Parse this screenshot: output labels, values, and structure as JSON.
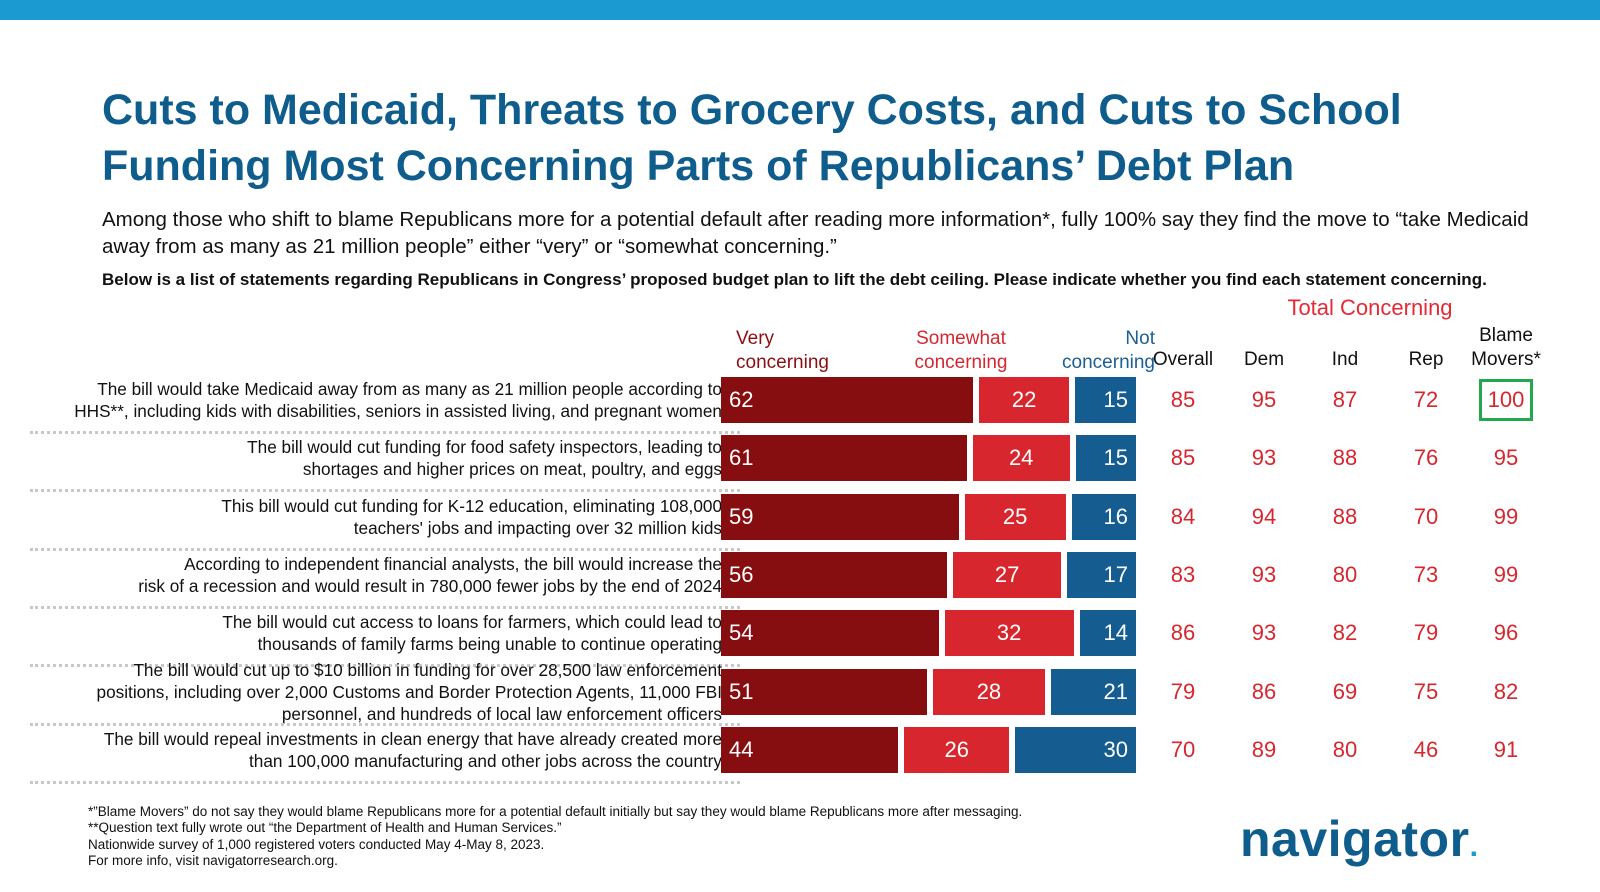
{
  "title": "Cuts to Medicaid, Threats to Grocery Costs, and Cuts to School Funding Most Concerning Parts of Republicans’ Debt Plan",
  "subtitle": "Among those who shift to blame Republicans more for a potential default after reading more information*, fully 100% say they find the move to “take Medicaid away from as many as 21 million people” either “very” or “somewhat concerning.”",
  "question": "Below is a list of statements regarding Republicans in Congress’ proposed budget plan to lift the debt ceiling. Please indicate whether you find each statement concerning.",
  "total_concerning_title": "Total Concerning",
  "colors": {
    "very": "#860d10",
    "somewhat": "#d7262e",
    "not": "#155d90",
    "title": "#0f5d8c",
    "highlight": "#23a84f"
  },
  "footnotes": [
    "*”Blame Movers” do not say they would blame Republicans more for a potential default initially but say they would blame Republicans more after messaging.",
    "**Question text fully wrote out “the Department of Health and Human Services.”",
    "Nationwide survey of 1,000 registered voters conducted May 4-May 8, 2023.",
    "For more info, visit navigatorresearch.org."
  ],
  "logo_text": "navigator",
  "logo_dot": ".",
  "chart_data": {
    "type": "bar",
    "orientation": "horizontal-stacked",
    "legend": {
      "very": [
        "Very",
        "concerning"
      ],
      "somewhat": [
        "Somewhat",
        "concerning"
      ],
      "not": [
        "Not",
        "concerning"
      ]
    },
    "categories": [
      [
        "The bill would take Medicaid away from as many as 21 million people according to",
        "HHS**, including kids with disabilities, seniors in assisted living, and pregnant women"
      ],
      [
        "The bill would cut funding for food safety inspectors, leading to",
        "shortages and higher prices on meat, poultry, and eggs"
      ],
      [
        "This bill would cut funding for K-12 education, eliminating 108,000",
        "teachers' jobs and impacting over 32 million kids"
      ],
      [
        "According to independent financial analysts, the bill would increase the",
        "risk of a recession and would result in 780,000 fewer jobs by the end of 2024"
      ],
      [
        "The bill would cut access to loans for farmers, which could lead to",
        "thousands of family farms being unable to continue operating"
      ],
      [
        "The bill would cut up to $10 billion in funding for over 28,500 law enforcement",
        "positions, including over 2,000 Customs and Border Protection Agents, 11,000 FBI",
        "personnel, and hundreds of local law enforcement officers"
      ],
      [
        "The bill would repeal investments in clean energy that have already created more",
        "than 100,000 manufacturing and other jobs across the country"
      ]
    ],
    "series": [
      {
        "key": "very",
        "values": [
          62,
          61,
          59,
          56,
          54,
          51,
          44
        ]
      },
      {
        "key": "somewhat",
        "values": [
          22,
          24,
          25,
          27,
          32,
          28,
          26
        ]
      },
      {
        "key": "not",
        "values": [
          15,
          15,
          16,
          17,
          14,
          21,
          30
        ]
      }
    ],
    "table": {
      "columns": [
        [
          "Overall"
        ],
        [
          "Dem"
        ],
        [
          "Ind"
        ],
        [
          "Rep"
        ],
        [
          "Blame",
          "Movers*"
        ]
      ],
      "rows": [
        [
          85,
          95,
          87,
          72,
          100
        ],
        [
          85,
          93,
          88,
          76,
          95
        ],
        [
          84,
          94,
          88,
          70,
          99
        ],
        [
          83,
          93,
          80,
          73,
          99
        ],
        [
          86,
          93,
          82,
          79,
          96
        ],
        [
          79,
          86,
          69,
          75,
          82
        ],
        [
          70,
          89,
          80,
          46,
          91
        ]
      ],
      "highlighted_cell": {
        "row": 0,
        "col": 4
      }
    }
  }
}
